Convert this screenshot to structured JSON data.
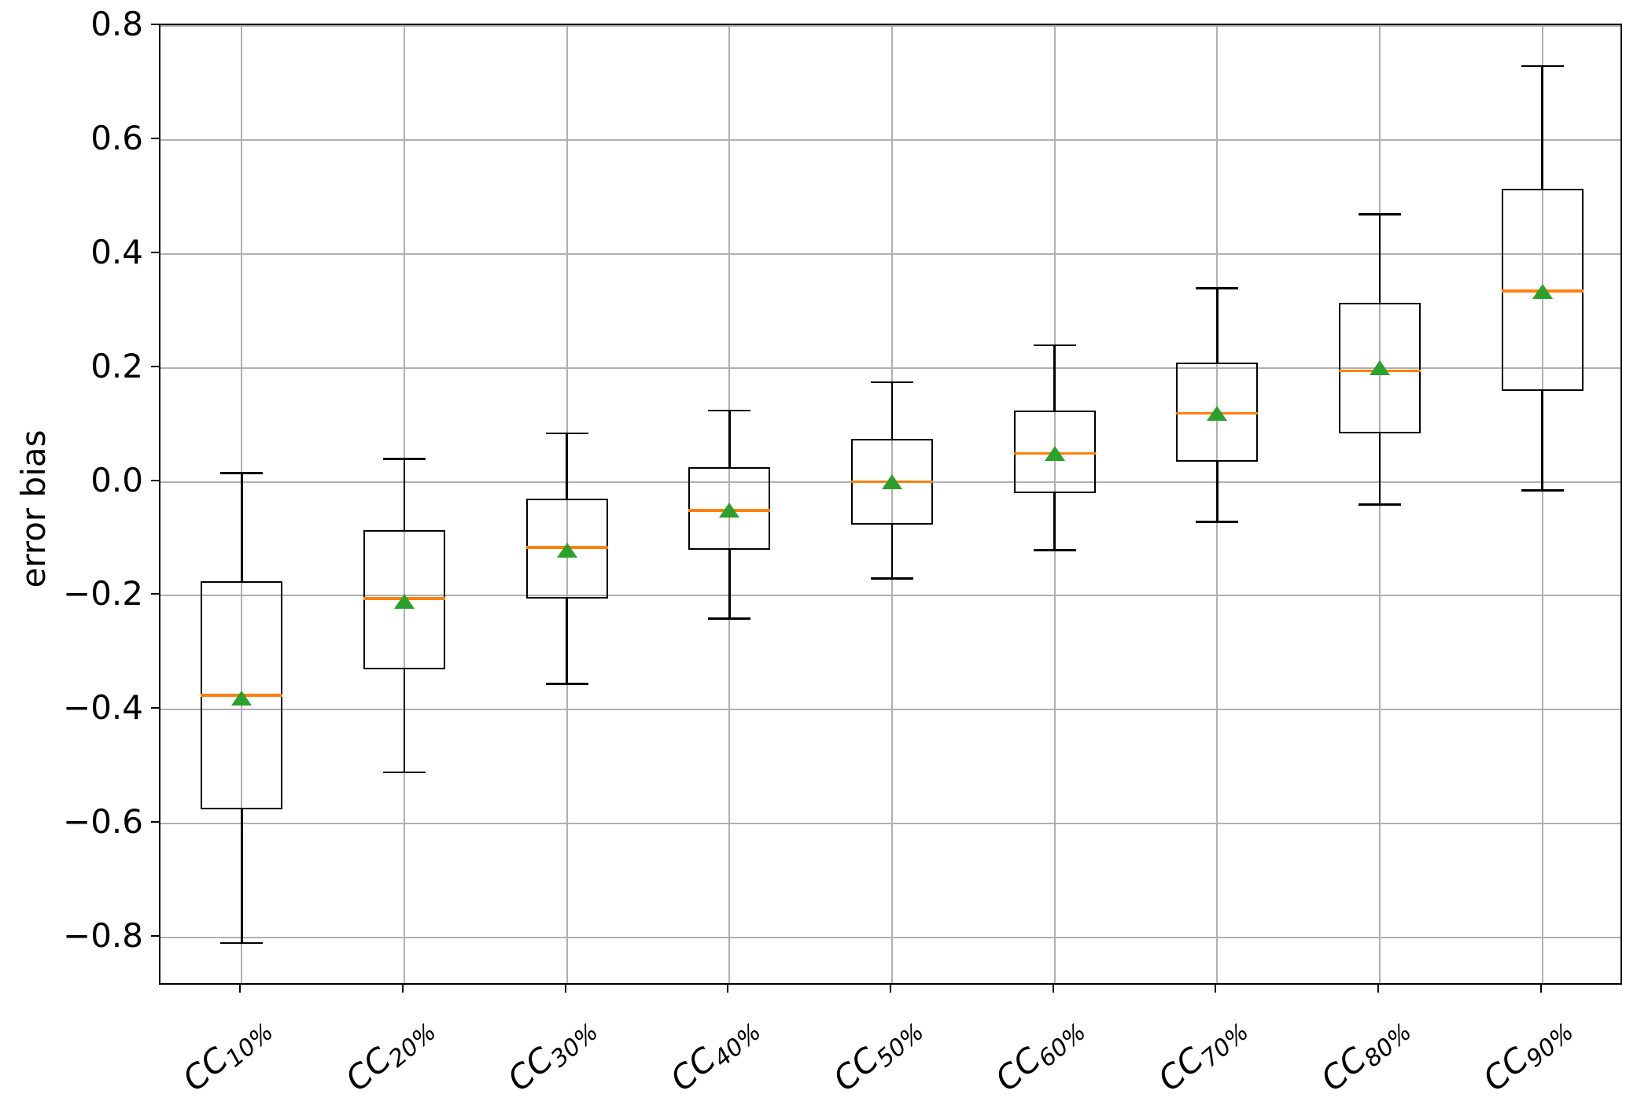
{
  "figure": {
    "background": "#ffffff"
  },
  "chart_data": {
    "type": "boxplot",
    "title": "",
    "ylabel": "error bias",
    "xlabel": "",
    "grid": true,
    "legend": null,
    "ylim": [
      -0.886,
      0.802
    ],
    "yticks": {
      "values": [
        0.8,
        0.6,
        0.4,
        0.2,
        0.0,
        -0.2,
        -0.4,
        -0.6,
        -0.8
      ],
      "labels": [
        "0.8",
        "0.6",
        "0.4",
        "0.2",
        "0.0",
        "−0.2",
        "−0.4",
        "−0.6",
        "−0.8"
      ]
    },
    "categories": [
      {
        "base": "CC",
        "sub": "10%"
      },
      {
        "base": "CC",
        "sub": "20%"
      },
      {
        "base": "CC",
        "sub": "30%"
      },
      {
        "base": "CC",
        "sub": "40%"
      },
      {
        "base": "CC",
        "sub": "50%"
      },
      {
        "base": "CC",
        "sub": "60%"
      },
      {
        "base": "CC",
        "sub": "70%"
      },
      {
        "base": "CC",
        "sub": "80%"
      },
      {
        "base": "CC",
        "sub": "90%"
      }
    ],
    "series": [
      {
        "label": "CC_10%",
        "whisker_low": -0.81,
        "q1": -0.575,
        "median": -0.375,
        "mean": -0.38,
        "q3": -0.175,
        "whisker_high": 0.015
      },
      {
        "label": "CC_20%",
        "whisker_low": -0.51,
        "q1": -0.33,
        "median": -0.205,
        "mean": -0.21,
        "q3": -0.085,
        "whisker_high": 0.04
      },
      {
        "label": "CC_30%",
        "whisker_low": -0.355,
        "q1": -0.205,
        "median": -0.115,
        "mean": -0.12,
        "q3": -0.03,
        "whisker_high": 0.085
      },
      {
        "label": "CC_40%",
        "whisker_low": -0.24,
        "q1": -0.12,
        "median": -0.05,
        "mean": -0.05,
        "q3": 0.025,
        "whisker_high": 0.125
      },
      {
        "label": "CC_50%",
        "whisker_low": -0.17,
        "q1": -0.075,
        "median": 0.0,
        "mean": 0.0,
        "q3": 0.075,
        "whisker_high": 0.175
      },
      {
        "label": "CC_60%",
        "whisker_low": -0.12,
        "q1": -0.02,
        "median": 0.05,
        "mean": 0.05,
        "q3": 0.125,
        "whisker_high": 0.24
      },
      {
        "label": "CC_70%",
        "whisker_low": -0.07,
        "q1": 0.035,
        "median": 0.12,
        "mean": 0.12,
        "q3": 0.21,
        "whisker_high": 0.34
      },
      {
        "label": "CC_80%",
        "whisker_low": -0.04,
        "q1": 0.085,
        "median": 0.195,
        "mean": 0.2,
        "q3": 0.315,
        "whisker_high": 0.47
      },
      {
        "label": "CC_90%",
        "whisker_low": -0.015,
        "q1": 0.16,
        "median": 0.335,
        "mean": 0.335,
        "q3": 0.515,
        "whisker_high": 0.73
      }
    ],
    "colors": {
      "box_line": "#000000",
      "median": "#ff7f0e",
      "mean_marker": "#2ca02c",
      "grid_line": "#b0b0b0",
      "spine": "#000000"
    }
  }
}
